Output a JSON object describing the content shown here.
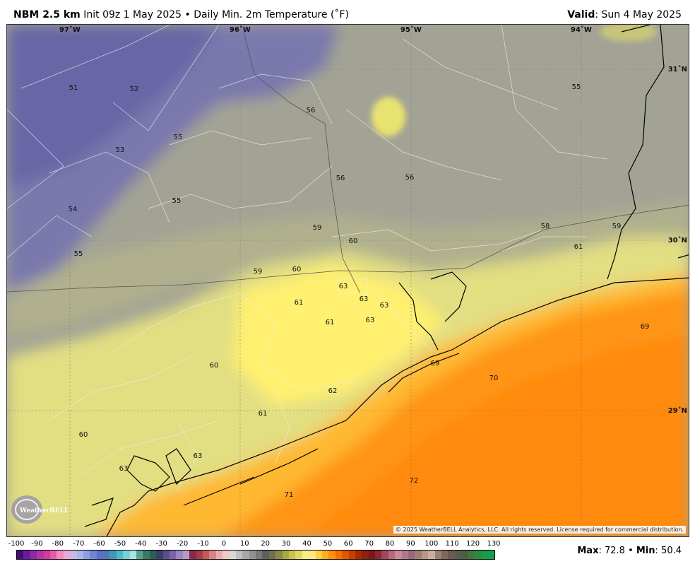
{
  "header": {
    "title_bold": "NBM 2.5 km",
    "title_rest": "Init 09z 1 May 2025 • Daily Min. 2m Temperature (˚F)",
    "valid_label": "Valid",
    "valid_value": ": Sun 4 May 2025"
  },
  "map": {
    "lon_labels": [
      "97˚W",
      "96˚W",
      "95˚W",
      "94˚W"
    ],
    "lat_labels": [
      "31˚N",
      "30˚N",
      "29˚N"
    ],
    "temperature_labels": [
      "51",
      "52",
      "55",
      "53",
      "56",
      "55",
      "56",
      "56",
      "54",
      "55",
      "59",
      "60",
      "58",
      "59",
      "61",
      "55",
      "59",
      "60",
      "63",
      "63",
      "63",
      "61",
      "61",
      "63",
      "69",
      "69",
      "60",
      "62",
      "70",
      "61",
      "60",
      "63",
      "63",
      "72",
      "71"
    ],
    "copyright": "© 2025 WeatherBELL Analytics, LLC. All rights reserved. License required for commercial distribution.",
    "logo_text": "WeatherBELL"
  },
  "colorbar": {
    "ticks": [
      "-100",
      "-90",
      "-80",
      "-70",
      "-60",
      "-50",
      "-40",
      "-30",
      "-20",
      "-10",
      "0",
      "10",
      "20",
      "30",
      "40",
      "50",
      "60",
      "70",
      "80",
      "90",
      "100",
      "110",
      "120",
      "130"
    ],
    "colors": [
      "#4a0b7a",
      "#6a1a9a",
      "#8e2aa8",
      "#b532a8",
      "#d23ba0",
      "#e85aa8",
      "#f08cc0",
      "#e9a9d6",
      "#c9b8e6",
      "#a9b4e8",
      "#8ca0e0",
      "#6f86d6",
      "#5a6fc8",
      "#4f79b8",
      "#3f9ab8",
      "#52b8c8",
      "#7ad0d8",
      "#a8e4e0",
      "#5aa090",
      "#3a7868",
      "#2c5f55",
      "#3c3e68",
      "#5a4f8a",
      "#7a63a8",
      "#9c84c0",
      "#b89cc0",
      "#8a2a4a",
      "#a83a4a",
      "#c25a5a",
      "#d88484",
      "#e8aaaa",
      "#f0c8c4",
      "#d8d8d8",
      "#c0c0c0",
      "#a8a8a8",
      "#909090",
      "#787878",
      "#606060",
      "#707050",
      "#8a8a48",
      "#a8a84a",
      "#c8c050",
      "#e0d860",
      "#f4f088",
      "#ffe880",
      "#ffd040",
      "#ffb020",
      "#ff9010",
      "#f07000",
      "#e05800",
      "#c84000",
      "#a82a00",
      "#902010",
      "#7a1818",
      "#8a2838",
      "#a04858",
      "#b86878",
      "#c88a98",
      "#b07888",
      "#98687a",
      "#a08070",
      "#b89888",
      "#c8b0a0",
      "#9c8070",
      "#80685c",
      "#6a5a50",
      "#5a5a50",
      "#4a6040",
      "#3c7840",
      "#2a8a40",
      "#1c9848",
      "#10a050"
    ]
  },
  "maxmin": {
    "max_label": "Max",
    "max_value": ": 72.8 • ",
    "min_label": "Min",
    "min_value": ": 50.4"
  }
}
